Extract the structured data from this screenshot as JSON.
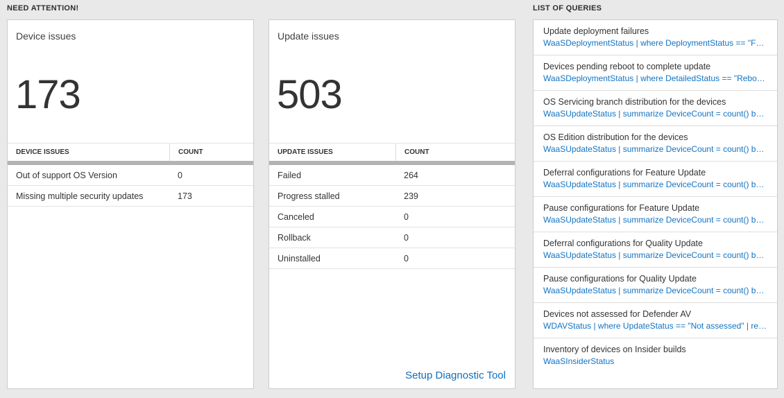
{
  "sections": {
    "need_attention": {
      "label": "NEED ATTENTION!"
    },
    "list_of_queries": {
      "label": "LIST OF QUERIES"
    }
  },
  "device_card": {
    "title": "Device issues",
    "count": "173",
    "table": {
      "headers": [
        "DEVICE ISSUES",
        "COUNT"
      ],
      "rows": [
        {
          "label": "Out of support OS Version",
          "count": "0"
        },
        {
          "label": "Missing multiple security updates",
          "count": "173"
        }
      ]
    }
  },
  "update_card": {
    "title": "Update issues",
    "count": "503",
    "table": {
      "headers": [
        "UPDATE ISSUES",
        "COUNT"
      ],
      "rows": [
        {
          "label": "Failed",
          "count": "264"
        },
        {
          "label": "Progress stalled",
          "count": "239"
        },
        {
          "label": "Canceled",
          "count": "0"
        },
        {
          "label": "Rollback",
          "count": "0"
        },
        {
          "label": "Uninstalled",
          "count": "0"
        }
      ]
    },
    "link_label": "Setup Diagnostic Tool"
  },
  "queries_card": {
    "items": [
      {
        "title": "Update deployment failures",
        "query": "WaaSDeploymentStatus | where DeploymentStatus == \"Failed\" |..."
      },
      {
        "title": "Devices pending reboot to complete update",
        "query": "WaaSDeploymentStatus | where DetailedStatus == \"Reboot pend..."
      },
      {
        "title": "OS Servicing branch distribution for the devices",
        "query": "WaaSUpdateStatus | summarize DeviceCount = count() by OSSer..."
      },
      {
        "title": "OS Edition distribution for the devices",
        "query": "WaaSUpdateStatus | summarize DeviceCount = count() by OSEdit..."
      },
      {
        "title": "Deferral configurations for Feature Update",
        "query": "WaaSUpdateStatus | summarize DeviceCount = count() by Featur..."
      },
      {
        "title": "Pause configurations for Feature Update",
        "query": "WaaSUpdateStatus | summarize DeviceCount = count() by Featur..."
      },
      {
        "title": "Deferral configurations for Quality Update",
        "query": "WaaSUpdateStatus | summarize DeviceCount = count() by Qualit..."
      },
      {
        "title": "Pause configurations for Quality Update",
        "query": "WaaSUpdateStatus | summarize DeviceCount = count() by Qualit..."
      },
      {
        "title": "Devices not assessed for Defender AV",
        "query": "WDAVStatus | where UpdateStatus == \"Not assessed\" | render ta..."
      },
      {
        "title": "Inventory of devices on Insider builds",
        "query": "WaaSInsiderStatus"
      }
    ]
  },
  "colors": {
    "page_background": "#e9e9e9",
    "accent_blue": "#1273c3",
    "link_blue": "#0e6fc0",
    "big_number": "#333333",
    "scrollbar_gray": "#b3b3b3",
    "card_border": "#cccccc"
  }
}
